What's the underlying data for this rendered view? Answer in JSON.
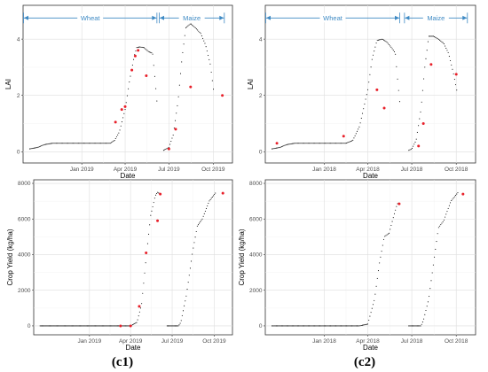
{
  "panel_labels": [
    "(c1)",
    "(c2)"
  ],
  "chart_data": [
    {
      "type": "scatter",
      "xlabel": "Date",
      "ylabel": "LAI",
      "xlim": [
        "2018-09-01",
        "2019-11-10"
      ],
      "ylim": [
        -0.4,
        5.2
      ],
      "xticks": [
        {
          "x": "2019-01-01",
          "label": "Jan 2019"
        },
        {
          "x": "2019-04-01",
          "label": "Apr 2019"
        },
        {
          "x": "2019-07-01",
          "label": "Jul 2019"
        },
        {
          "x": "2019-10-01",
          "label": "Oct 2019"
        }
      ],
      "yticks": [
        {
          "y": 0,
          "label": "0"
        },
        {
          "y": 2,
          "label": "2"
        },
        {
          "y": 4,
          "label": "4"
        }
      ],
      "segments": [
        {
          "label": "Wheat",
          "start": "2018-09-01",
          "end": "2019-06-07",
          "y": 4.75
        },
        {
          "label": "Maize",
          "start": "2019-06-10",
          "end": "2019-10-25",
          "y": 4.75
        }
      ],
      "series": [
        {
          "kind": "simulated",
          "color": "#000000",
          "x": [
            "2018-09-15",
            "2018-10-01",
            "2018-10-15",
            "2018-11-01",
            "2018-11-15",
            "2018-12-01",
            "2019-01-01",
            "2019-02-01",
            "2019-03-01",
            "2019-03-10",
            "2019-03-20",
            "2019-04-01",
            "2019-04-10",
            "2019-04-20",
            "2019-04-25",
            "2019-05-01",
            "2019-05-10",
            "2019-05-20",
            "2019-05-28",
            "2019-06-02",
            "2019-06-07"
          ],
          "y": [
            0.1,
            0.15,
            0.25,
            0.3,
            0.3,
            0.3,
            0.3,
            0.3,
            0.3,
            0.4,
            0.7,
            1.5,
            2.5,
            3.4,
            3.7,
            3.72,
            3.7,
            3.55,
            3.5,
            2.6,
            1.6
          ]
        },
        {
          "kind": "simulated",
          "color": "#000000",
          "x": [
            "2019-06-20",
            "2019-07-01",
            "2019-07-10",
            "2019-07-20",
            "2019-07-28",
            "2019-08-05",
            "2019-08-15",
            "2019-08-25",
            "2019-09-05",
            "2019-09-15",
            "2019-09-25",
            "2019-10-03"
          ],
          "y": [
            0.05,
            0.15,
            0.6,
            1.8,
            3.3,
            4.4,
            4.55,
            4.4,
            4.2,
            3.8,
            3.1,
            2.0
          ]
        },
        {
          "kind": "observed",
          "color": "#e8202a",
          "x": [
            "2019-03-12",
            "2019-03-25",
            "2019-04-01",
            "2019-04-15",
            "2019-04-22",
            "2019-04-28",
            "2019-05-15",
            "2019-07-01",
            "2019-07-15",
            "2019-08-15",
            "2019-10-20"
          ],
          "y": [
            1.05,
            1.5,
            1.6,
            2.9,
            3.4,
            3.6,
            2.7,
            0.1,
            0.8,
            2.3,
            2.0
          ]
        }
      ]
    },
    {
      "type": "scatter",
      "xlabel": "Date",
      "ylabel": "LAI",
      "xlim": [
        "2017-09-01",
        "2018-11-10"
      ],
      "ylim": [
        -0.4,
        5.2
      ],
      "xticks": [
        {
          "x": "2018-01-01",
          "label": "Jan 2018"
        },
        {
          "x": "2018-04-01",
          "label": "Apr 2018"
        },
        {
          "x": "2018-07-01",
          "label": "Jul 2018"
        },
        {
          "x": "2018-10-01",
          "label": "Oct 2018"
        }
      ],
      "yticks": [
        {
          "y": 0,
          "label": "0"
        },
        {
          "y": 2,
          "label": "2"
        },
        {
          "y": 4,
          "label": "4"
        }
      ],
      "segments": [
        {
          "label": "Wheat",
          "start": "2017-09-01",
          "end": "2018-06-07",
          "y": 4.75
        },
        {
          "label": "Maize",
          "start": "2018-06-15",
          "end": "2018-10-25",
          "y": 4.75
        }
      ],
      "series": [
        {
          "kind": "simulated",
          "color": "#000000",
          "x": [
            "2017-09-15",
            "2017-10-01",
            "2017-10-15",
            "2017-11-01",
            "2017-12-01",
            "2018-01-01",
            "2018-02-01",
            "2018-02-15",
            "2018-03-01",
            "2018-03-15",
            "2018-04-01",
            "2018-04-10",
            "2018-04-20",
            "2018-05-01",
            "2018-05-10",
            "2018-05-20",
            "2018-05-28",
            "2018-06-02",
            "2018-06-07"
          ],
          "y": [
            0.1,
            0.15,
            0.25,
            0.3,
            0.3,
            0.3,
            0.3,
            0.3,
            0.4,
            0.9,
            2.2,
            3.3,
            3.95,
            4.0,
            3.9,
            3.7,
            3.5,
            2.5,
            1.6
          ]
        },
        {
          "kind": "simulated",
          "color": "#000000",
          "x": [
            "2018-06-25",
            "2018-07-01",
            "2018-07-10",
            "2018-07-20",
            "2018-07-28",
            "2018-08-05",
            "2018-08-15",
            "2018-08-25",
            "2018-09-05",
            "2018-09-15",
            "2018-09-25",
            "2018-10-03"
          ],
          "y": [
            0.05,
            0.1,
            0.4,
            1.5,
            3.0,
            4.1,
            4.1,
            4.0,
            3.85,
            3.5,
            2.8,
            2.1
          ]
        },
        {
          "kind": "observed",
          "color": "#e8202a",
          "x": [
            "2017-09-25",
            "2018-02-10",
            "2018-04-20",
            "2018-05-05",
            "2018-07-15",
            "2018-07-25",
            "2018-08-10",
            "2018-10-01"
          ],
          "y": [
            0.3,
            0.55,
            2.2,
            1.55,
            0.2,
            1.0,
            3.1,
            2.75
          ]
        }
      ]
    },
    {
      "type": "scatter",
      "xlabel": "Date",
      "ylabel": "Crop Yield (kg/ha)",
      "xlim": [
        "2018-09-01",
        "2019-11-10"
      ],
      "ylim": [
        -500,
        8200
      ],
      "xticks": [
        {
          "x": "2019-01-01",
          "label": "Jan 2019"
        },
        {
          "x": "2019-04-01",
          "label": "Apr 2019"
        },
        {
          "x": "2019-07-01",
          "label": "Jul 2019"
        },
        {
          "x": "2019-10-01",
          "label": "Oct 2019"
        }
      ],
      "yticks": [
        {
          "y": 0,
          "label": "0"
        },
        {
          "y": 2000,
          "label": "2000"
        },
        {
          "y": 4000,
          "label": "4000"
        },
        {
          "y": 6000,
          "label": "6000"
        },
        {
          "y": 8000,
          "label": "8000"
        }
      ],
      "series": [
        {
          "kind": "simulated",
          "color": "#000000",
          "x": [
            "2018-09-15",
            "2019-01-01",
            "2019-04-01",
            "2019-04-15",
            "2019-04-25",
            "2019-05-05",
            "2019-05-15",
            "2019-05-25",
            "2019-05-30",
            "2019-06-05"
          ],
          "y": [
            0,
            0,
            0,
            200,
            1200,
            3800,
            6200,
            7300,
            7500,
            7400
          ]
        },
        {
          "kind": "simulated",
          "color": "#000000",
          "x": [
            "2019-06-20",
            "2019-07-15",
            "2019-07-20",
            "2019-08-01",
            "2019-08-15",
            "2019-08-25",
            "2019-09-05",
            "2019-09-20",
            "2019-10-05"
          ],
          "y": [
            0,
            0,
            200,
            1700,
            4200,
            5600,
            6000,
            7000,
            7500
          ]
        },
        {
          "kind": "observed",
          "color": "#e8202a",
          "x": [
            "2019-03-10",
            "2019-04-01",
            "2019-04-20",
            "2019-05-05",
            "2019-05-30",
            "2019-06-05",
            "2019-10-20"
          ],
          "y": [
            0,
            0,
            1100,
            4100,
            5900,
            7400,
            7450
          ]
        }
      ]
    },
    {
      "type": "scatter",
      "xlabel": "Date",
      "ylabel": "Crop Yield (kg/ha)",
      "xlim": [
        "2017-09-01",
        "2018-11-10"
      ],
      "ylim": [
        -500,
        8200
      ],
      "xticks": [
        {
          "x": "2018-01-01",
          "label": "Jan 2018"
        },
        {
          "x": "2018-04-01",
          "label": "Apr 2018"
        },
        {
          "x": "2018-07-01",
          "label": "Jul 2018"
        },
        {
          "x": "2018-10-01",
          "label": "Oct 2018"
        }
      ],
      "yticks": [
        {
          "y": 0,
          "label": "0"
        },
        {
          "y": 2000,
          "label": "2000"
        },
        {
          "y": 4000,
          "label": "4000"
        },
        {
          "y": 6000,
          "label": "6000"
        },
        {
          "y": 8000,
          "label": "8000"
        }
      ],
      "series": [
        {
          "kind": "simulated",
          "color": "#000000",
          "x": [
            "2017-09-15",
            "2018-01-01",
            "2018-03-15",
            "2018-04-01",
            "2018-04-15",
            "2018-04-25",
            "2018-05-05",
            "2018-05-15",
            "2018-05-25",
            "2018-06-01",
            "2018-06-05"
          ],
          "y": [
            0,
            0,
            0,
            100,
            1500,
            3500,
            5000,
            5200,
            6200,
            6850,
            6900
          ]
        },
        {
          "kind": "simulated",
          "color": "#000000",
          "x": [
            "2018-06-25",
            "2018-07-20",
            "2018-07-25",
            "2018-08-05",
            "2018-08-15",
            "2018-08-25",
            "2018-09-05",
            "2018-09-20",
            "2018-10-05"
          ],
          "y": [
            0,
            0,
            300,
            1500,
            3500,
            5500,
            5900,
            7000,
            7500
          ]
        },
        {
          "kind": "observed",
          "color": "#e8202a",
          "x": [
            "2018-06-05",
            "2018-10-15"
          ],
          "y": [
            6850,
            7400
          ]
        }
      ]
    }
  ]
}
